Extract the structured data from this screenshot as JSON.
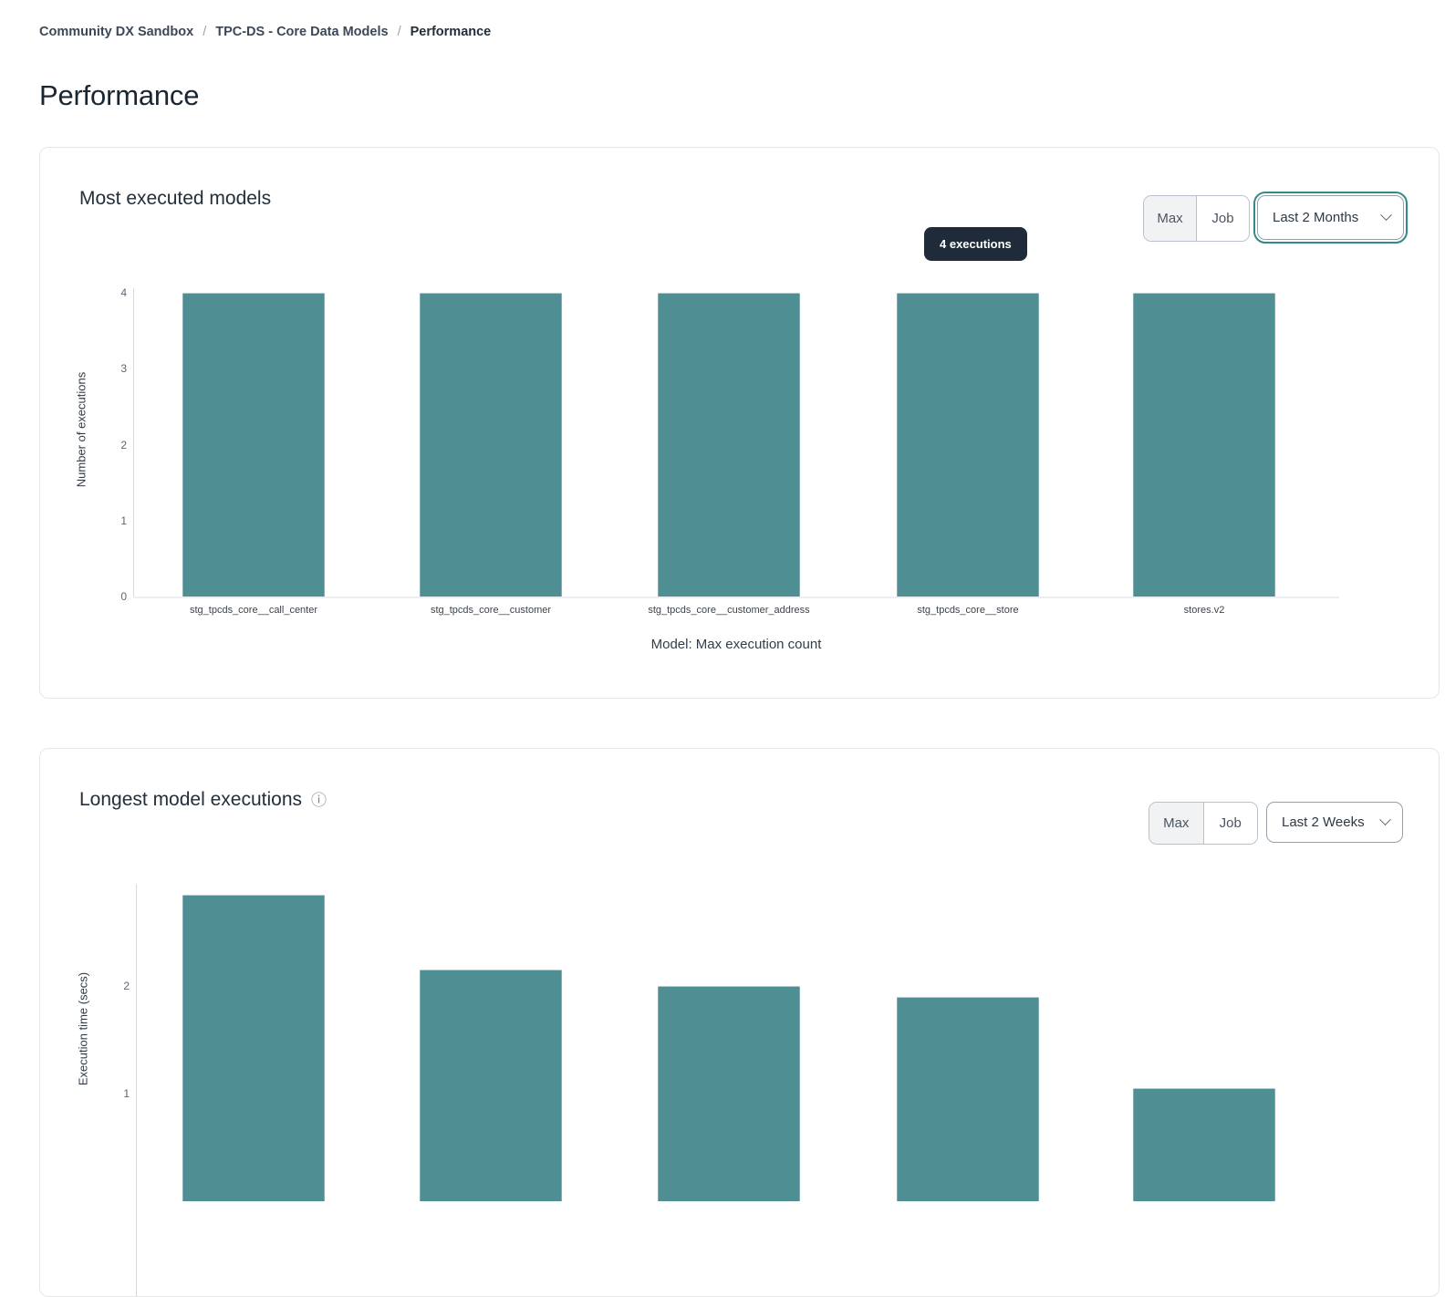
{
  "breadcrumb": {
    "separator": "/",
    "items": [
      {
        "label": "Community DX Sandbox"
      },
      {
        "label": "TPC-DS - Core Data Models"
      },
      {
        "label": "Performance"
      }
    ]
  },
  "page": {
    "title": "Performance"
  },
  "icons": {
    "info": "ⓘ"
  },
  "colors": {
    "bar": "#4f8e93",
    "tooltip_bg": "#1f2b3a",
    "focus_ring": "#35898a"
  },
  "cards": [
    {
      "title": "Most executed models",
      "controls": {
        "toggle": [
          "Max",
          "Job"
        ],
        "selected": "Max",
        "dropdown": "Last 2 Months"
      },
      "tooltip": "4 executions"
    },
    {
      "title": "Longest model executions",
      "controls": {
        "toggle": [
          "Max",
          "Job"
        ],
        "selected": "Max",
        "dropdown": "Last 2 Weeks"
      }
    }
  ],
  "chart_data": [
    {
      "type": "bar",
      "title": "Most executed models",
      "categories": [
        "stg_tpcds_core__call_center",
        "stg_tpcds_core__customer",
        "stg_tpcds_core__customer_address",
        "stg_tpcds_core__store",
        "stores.v2"
      ],
      "values": [
        4,
        4,
        4,
        4,
        4
      ],
      "xlabel": "Model: Max execution count",
      "ylabel": "Number of executions",
      "ylim": [
        0,
        4
      ],
      "yticks": [
        0,
        1,
        2,
        3,
        4
      ],
      "grid": false,
      "bar_color": "#4f8e93",
      "tooltip": {
        "text": "4 executions",
        "bar_index": 3
      }
    },
    {
      "type": "bar",
      "title": "Longest model executions",
      "categories": [
        "",
        "",
        "",
        "",
        ""
      ],
      "values": [
        2.85,
        2.15,
        2.0,
        1.9,
        1.05
      ],
      "xlabel": "",
      "ylabel": "Execution time (secs)",
      "ylim": [
        0,
        3
      ],
      "yticks": [
        1,
        2
      ],
      "grid": false,
      "bar_color": "#4f8e93"
    }
  ]
}
